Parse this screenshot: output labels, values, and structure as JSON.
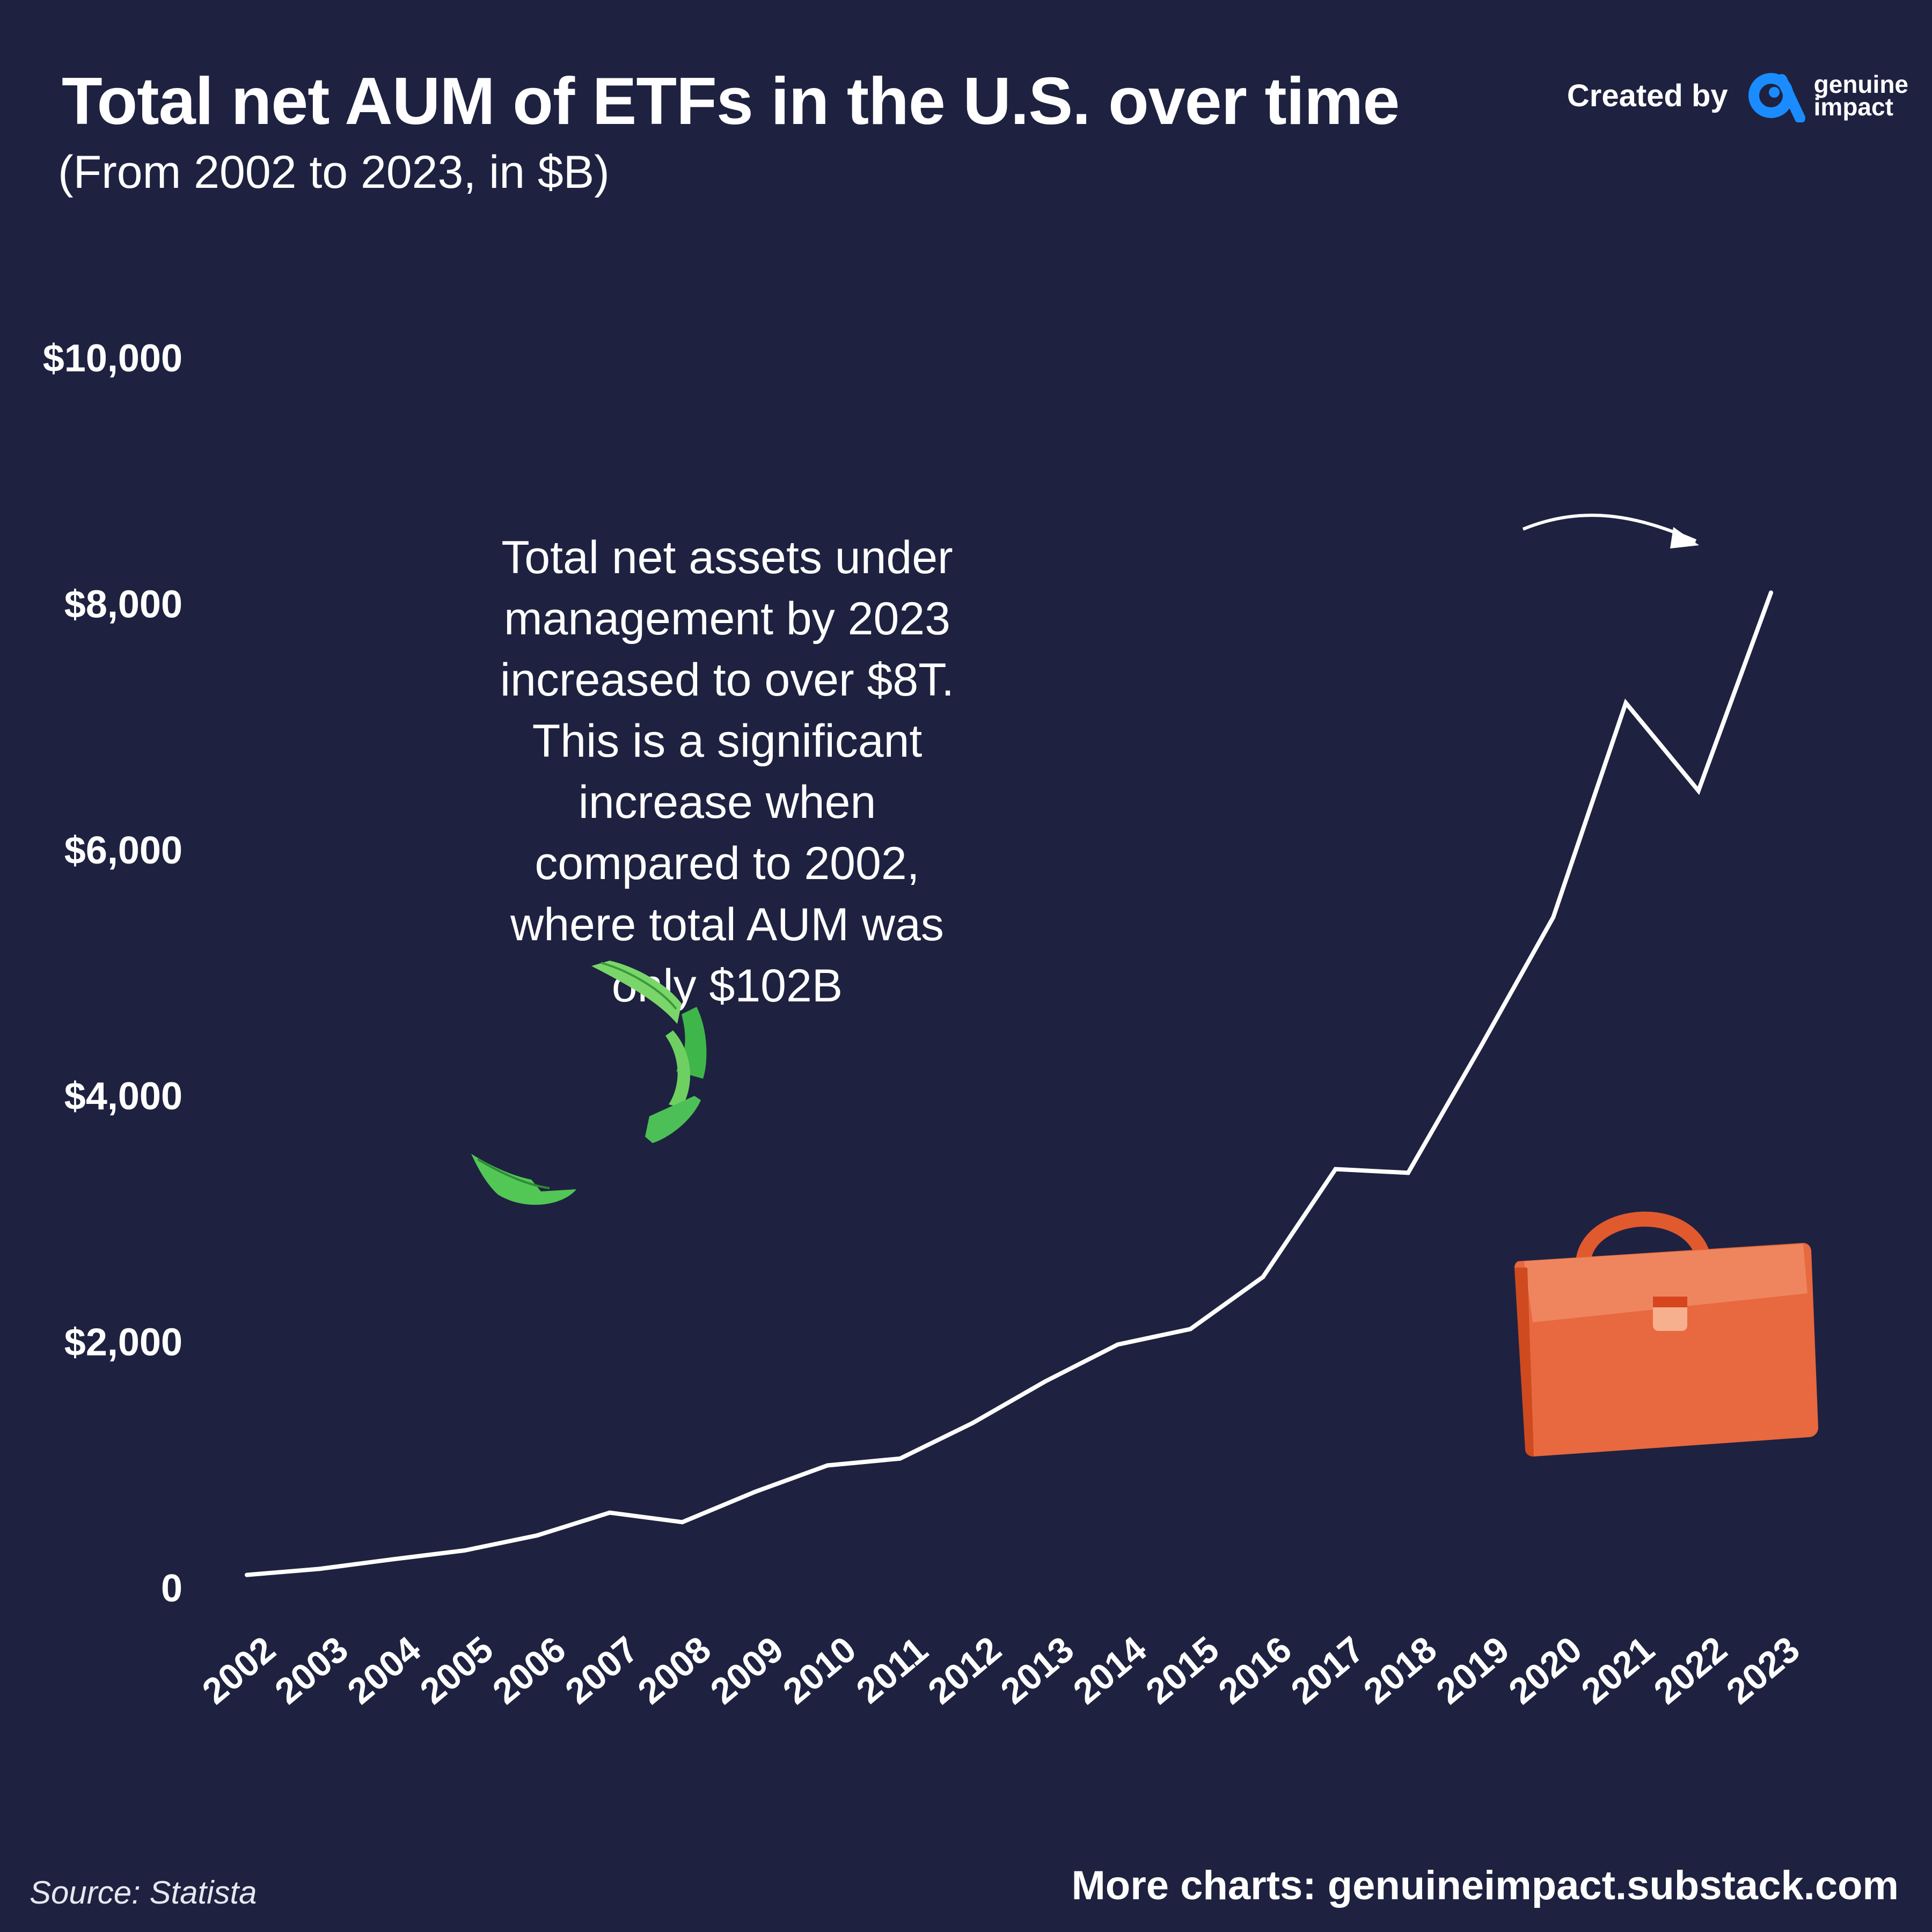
{
  "header": {
    "title": "Total net AUM of ETFs in the U.S. over time",
    "subtitle": "(From 2002 to 2023, in $B)"
  },
  "brand": {
    "created_by": "Created by",
    "name_line1": "genuine",
    "name_line2": "impact",
    "logo_color": "#1a8cff"
  },
  "annotation": "Total net assets under management by 2023 increased to over $8T. This is a significant increase when compared to 2002, where total AUM was only $102B",
  "footer": {
    "source": "Source: Statista",
    "more_charts": "More charts: genuineimpact.substack.com"
  },
  "icons": {
    "money": "flying-money-icon",
    "briefcase": "briefcase-icon"
  },
  "colors": {
    "background": "#1e2240",
    "line": "#ffffff",
    "briefcase": "#e8683f",
    "money": "#5fcf55"
  },
  "chart_data": {
    "type": "line",
    "title": "Total net AUM of ETFs in the U.S. over time",
    "subtitle": "(From 2002 to 2023, in $B)",
    "xlabel": "",
    "ylabel": "",
    "x": [
      "2002",
      "2003",
      "2004",
      "2005",
      "2006",
      "2007",
      "2008",
      "2009",
      "2010",
      "2011",
      "2012",
      "2013",
      "2014",
      "2015",
      "2016",
      "2017",
      "2018",
      "2019",
      "2020",
      "2021",
      "2022",
      "2023"
    ],
    "series": [
      {
        "values": [
          102,
          151,
          228,
          301,
          423,
          608,
          531,
          777,
          992,
          1048,
          1337,
          1675,
          1975,
          2101,
          2524,
          3401,
          3371,
          4396,
          5449,
          7191,
          6477,
          8088
        ]
      }
    ],
    "ylim": [
      0,
      10000
    ],
    "y_ticks": [
      0,
      2000,
      4000,
      6000,
      8000,
      10000
    ],
    "y_tick_labels": [
      "0",
      "$2,000",
      "$4,000",
      "$6,000",
      "$8,000",
      "$10,000"
    ],
    "grid": false,
    "legend": "none"
  }
}
